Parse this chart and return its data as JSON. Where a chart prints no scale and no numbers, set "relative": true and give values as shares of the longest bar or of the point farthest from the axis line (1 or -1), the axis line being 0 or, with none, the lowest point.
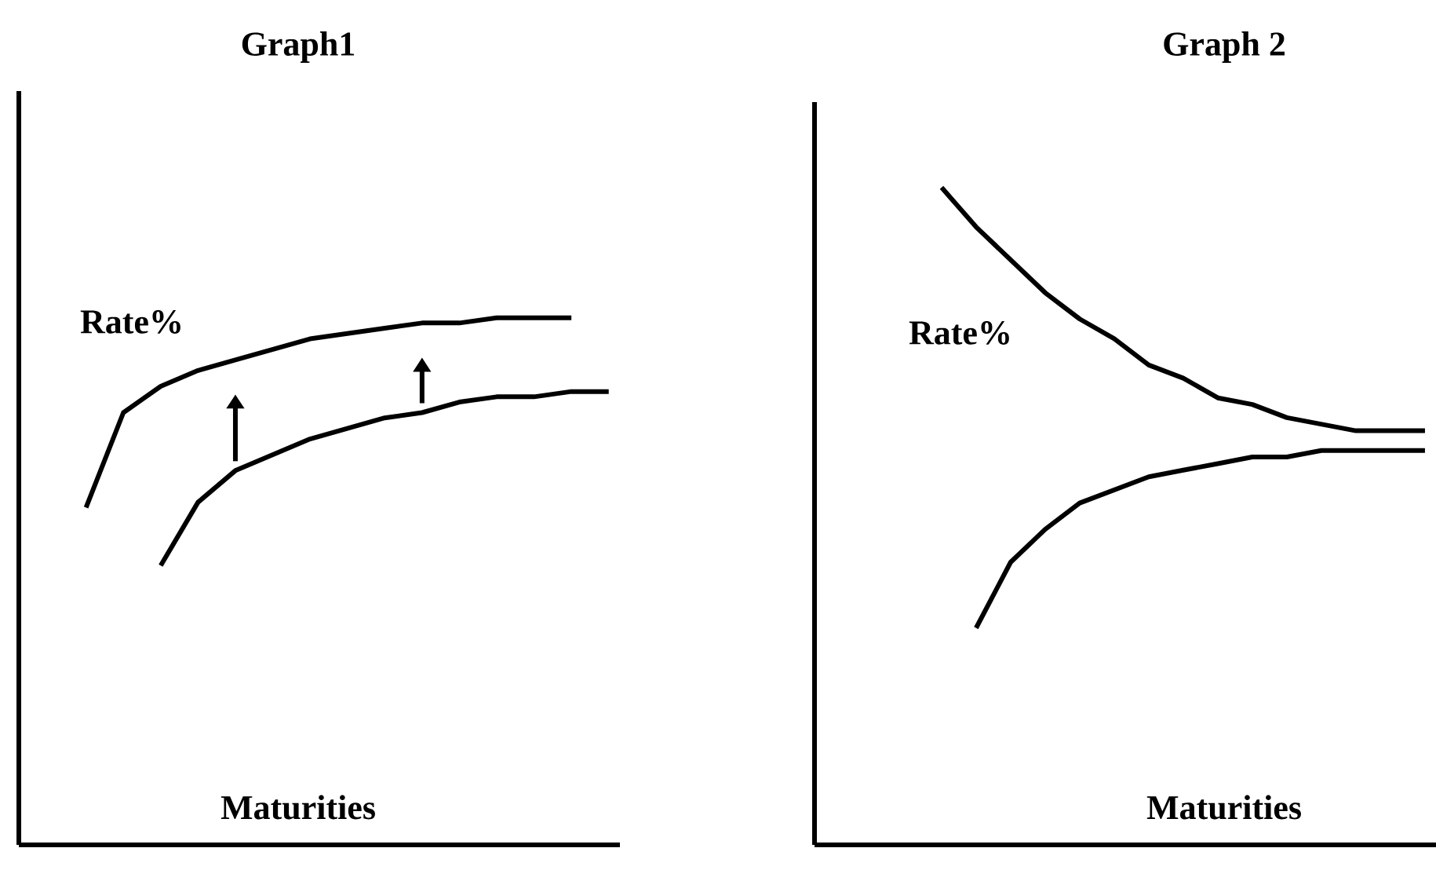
{
  "chart_data": [
    {
      "type": "line",
      "title": "Graph1",
      "xlabel": "Maturities",
      "annotations": [
        "Rate%"
      ],
      "relative": true,
      "color": "#000000",
      "categories": [
        null,
        null,
        null,
        null,
        null,
        null,
        null,
        null,
        null,
        null,
        null,
        null,
        null,
        null,
        null
      ],
      "series": [
        {
          "values": [
            0.64,
            0.82,
            0.87,
            0.9,
            0.92,
            0.94,
            0.96,
            0.97,
            0.98,
            0.99,
            0.99,
            1.0,
            1.0,
            1.0,
            null
          ]
        },
        {
          "values": [
            null,
            null,
            0.53,
            0.65,
            0.71,
            0.74,
            0.77,
            0.79,
            0.81,
            0.82,
            0.84,
            0.85,
            0.85,
            0.86,
            0.86
          ]
        }
      ]
    },
    {
      "type": "line",
      "title": "Graph 2",
      "xlabel": "Maturities",
      "annotations": [
        "Rate%"
      ],
      "relative": true,
      "color": "#000000",
      "categories": [
        null,
        null,
        null,
        null,
        null,
        null,
        null,
        null,
        null,
        null,
        null,
        null,
        null,
        null,
        null
      ],
      "series": [
        {
          "values": [
            1.0,
            0.94,
            0.89,
            0.84,
            0.8,
            0.77,
            0.73,
            0.71,
            0.68,
            0.67,
            0.65,
            0.64,
            0.63,
            0.63,
            0.63
          ]
        },
        {
          "values": [
            null,
            0.33,
            0.43,
            0.48,
            0.52,
            0.54,
            0.56,
            0.57,
            0.58,
            0.59,
            0.59,
            0.6,
            0.6,
            0.6,
            0.6
          ]
        }
      ]
    }
  ]
}
